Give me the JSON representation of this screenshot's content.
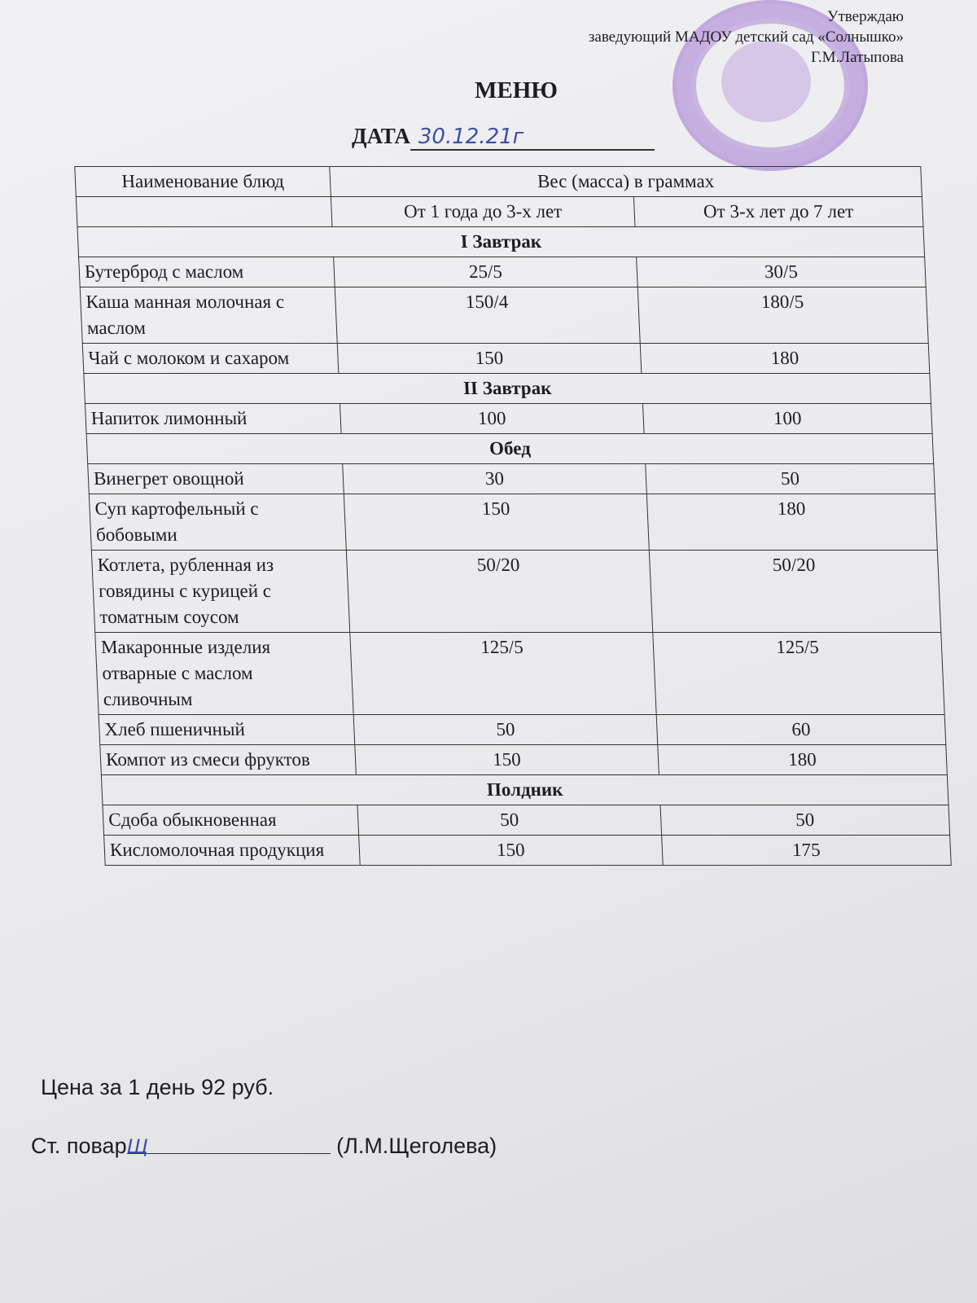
{
  "approval": {
    "line1": "Утверждаю",
    "line2": "заведующий МАДОУ детский сад «Солнышко»",
    "line3": "Г.М.Латыпова"
  },
  "title": "МЕНЮ",
  "date": {
    "label": "ДАТА",
    "value": "30.12.21г"
  },
  "table": {
    "header": {
      "name": "Наименование блюд",
      "weight": "Вес (масса) в граммах",
      "age1": "От 1 года до 3-х лет",
      "age2": "От 3-х лет до 7 лет"
    },
    "sections": [
      {
        "title": "I Завтрак",
        "rows": [
          {
            "name": "Бутерброд с маслом",
            "a": "25/5",
            "b": "30/5"
          },
          {
            "name": "Каша манная молочная с маслом",
            "a": "150/4",
            "b": "180/5"
          },
          {
            "name": "Чай с молоком и сахаром",
            "a": "150",
            "b": "180"
          }
        ]
      },
      {
        "title": "II Завтрак",
        "rows": [
          {
            "name": "Напиток лимонный",
            "a": "100",
            "b": "100"
          }
        ]
      },
      {
        "title": "Обед",
        "rows": [
          {
            "name": "Винегрет овощной",
            "a": "30",
            "b": "50"
          },
          {
            "name": "Суп картофельный с бобовыми",
            "a": "150",
            "b": "180"
          },
          {
            "name": "Котлета, рубленная из говядины с курицей с томатным соусом",
            "a": "50/20",
            "b": "50/20"
          },
          {
            "name": "Макаронные изделия отварные с маслом сливочным",
            "a": "125/5",
            "b": "125/5"
          },
          {
            "name": "Хлеб пшеничный",
            "a": "50",
            "b": "60"
          },
          {
            "name": "Компот из смеси фруктов",
            "a": "150",
            "b": "180"
          }
        ]
      },
      {
        "title": "Полдник",
        "rows": [
          {
            "name": "Сдоба обыкновенная",
            "a": "50",
            "b": "50"
          },
          {
            "name": "Кисломолочная продукция",
            "a": "150",
            "b": "175"
          }
        ]
      }
    ]
  },
  "footer": {
    "price": "Цена за 1 день 92 руб.",
    "cook_label": "Ст. повар",
    "cook_signature": "Щ",
    "cook_name": "(Л.М.Щеголева)"
  }
}
